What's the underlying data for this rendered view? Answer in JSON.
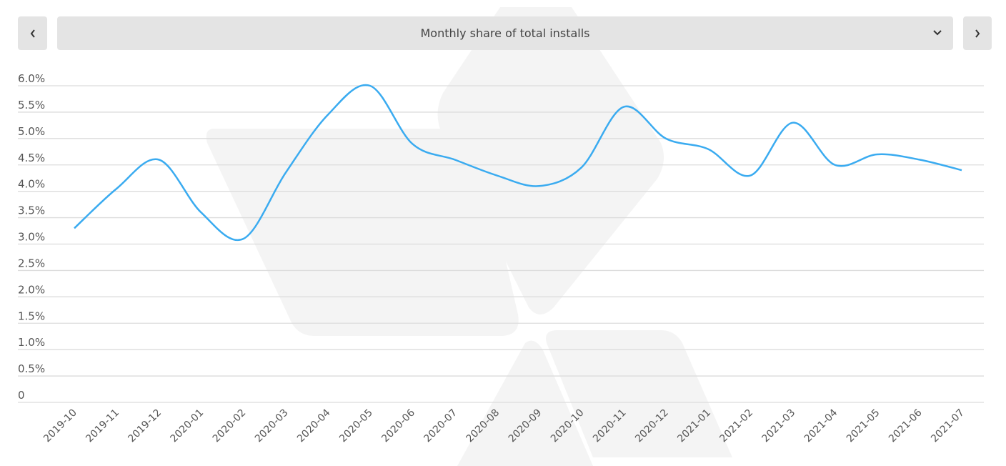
{
  "header": {
    "prev_icon": "chevron-left-icon",
    "next_icon": "chevron-right-icon",
    "dropdown_icon": "chevron-down-icon",
    "selected_metric": "Monthly share of total installs"
  },
  "chart_data": {
    "type": "line",
    "title": "",
    "xlabel": "",
    "ylabel": "",
    "ylim": [
      0,
      6.0
    ],
    "grid": true,
    "line_color": "#3aabf0",
    "y_ticks": [
      "0",
      "0.5%",
      "1.0%",
      "1.5%",
      "2.0%",
      "2.5%",
      "3.0%",
      "3.5%",
      "4.0%",
      "4.5%",
      "5.0%",
      "5.5%",
      "6.0%"
    ],
    "categories": [
      "2019-10",
      "2019-11",
      "2019-12",
      "2020-01",
      "2020-02",
      "2020-03",
      "2020-04",
      "2020-05",
      "2020-06",
      "2020-07",
      "2020-08",
      "2020-09",
      "2020-10",
      "2020-11",
      "2020-12",
      "2021-01",
      "2021-02",
      "2021-03",
      "2021-04",
      "2021-05",
      "2021-06",
      "2021-07"
    ],
    "values": [
      3.3,
      4.05,
      4.6,
      3.6,
      3.1,
      4.35,
      5.45,
      6.0,
      4.9,
      4.6,
      4.3,
      4.1,
      4.45,
      5.6,
      5.0,
      4.8,
      4.3,
      5.3,
      4.5,
      4.7,
      4.6,
      4.4
    ]
  }
}
